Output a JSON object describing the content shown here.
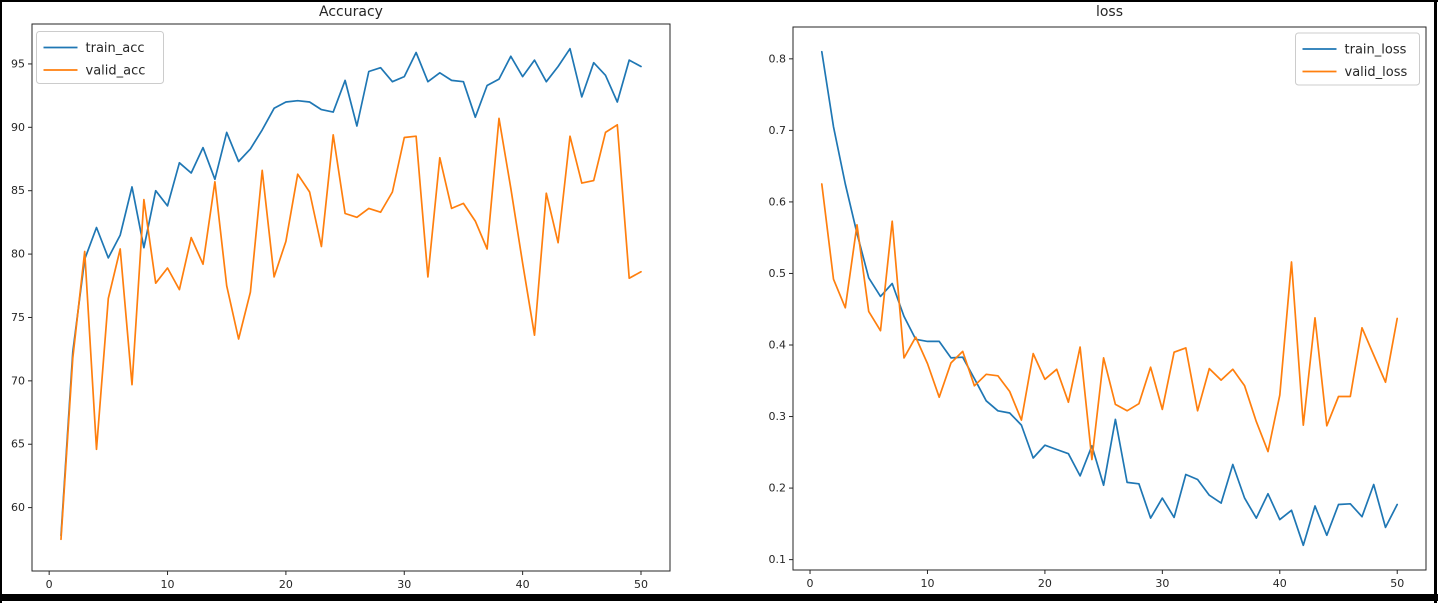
{
  "window": {
    "background": "#ffffff",
    "frame_color": "#000000"
  },
  "palette": {
    "train_color": "#1f77b4",
    "valid_color": "#ff7f0e",
    "axis_color": "#262626",
    "legend_border": "#cccccc",
    "text_color": "#262626"
  },
  "chart_data": [
    {
      "id": "accuracy",
      "type": "line",
      "title": "Accuracy",
      "xlabel": "",
      "ylabel": "",
      "xlim": [
        -1.45,
        52.45
      ],
      "ylim": [
        55.0,
        98.15
      ],
      "grid": false,
      "xticks": {
        "values": [
          0,
          10,
          20,
          30,
          40,
          50
        ],
        "labels": [
          "0",
          "10",
          "20",
          "30",
          "40",
          "50"
        ]
      },
      "yticks": {
        "values": [
          60,
          65,
          70,
          75,
          80,
          85,
          90,
          95
        ],
        "labels": [
          "60",
          "65",
          "70",
          "75",
          "80",
          "85",
          "90",
          "95"
        ]
      },
      "legend": {
        "position": "upper-left",
        "labels": [
          "train_acc",
          "valid_acc"
        ]
      },
      "x_start": 1,
      "series": [
        {
          "name": "train_acc",
          "color": "#1f77b4",
          "values": [
            57.8,
            72.3,
            79.6,
            82.1,
            79.7,
            81.5,
            85.3,
            80.5,
            85.0,
            83.8,
            87.2,
            86.4,
            88.4,
            85.9,
            89.6,
            87.3,
            88.3,
            89.8,
            91.5,
            92.0,
            92.1,
            92.0,
            91.4,
            91.2,
            93.7,
            90.1,
            94.4,
            94.7,
            93.6,
            94.0,
            95.9,
            93.6,
            94.3,
            93.7,
            93.6,
            90.8,
            93.3,
            93.8,
            95.6,
            94.0,
            95.3,
            93.6,
            94.8,
            96.2,
            92.4,
            95.1,
            94.1,
            92.0,
            95.3,
            94.8
          ]
        },
        {
          "name": "valid_acc",
          "color": "#ff7f0e",
          "values": [
            57.5,
            71.8,
            80.2,
            64.6,
            76.5,
            80.4,
            69.7,
            84.3,
            77.7,
            78.9,
            77.2,
            81.3,
            79.2,
            85.7,
            77.5,
            73.3,
            77.0,
            86.6,
            78.2,
            81.0,
            86.3,
            84.9,
            80.6,
            89.4,
            83.2,
            82.9,
            83.6,
            83.3,
            84.9,
            89.2,
            89.3,
            78.2,
            87.6,
            83.6,
            84.0,
            82.6,
            80.4,
            90.7,
            85.2,
            79.3,
            73.6,
            84.8,
            80.9,
            89.3,
            85.6,
            85.8,
            89.6,
            90.2,
            78.1,
            78.6
          ]
        }
      ]
    },
    {
      "id": "loss",
      "type": "line",
      "title": "loss",
      "xlabel": "",
      "ylabel": "",
      "xlim": [
        -1.45,
        52.45
      ],
      "ylim": [
        0.0855,
        0.8445
      ],
      "grid": false,
      "xticks": {
        "values": [
          0,
          10,
          20,
          30,
          40,
          50
        ],
        "labels": [
          "0",
          "10",
          "20",
          "30",
          "40",
          "50"
        ]
      },
      "yticks": {
        "values": [
          0.1,
          0.2,
          0.3,
          0.4,
          0.5,
          0.6,
          0.7,
          0.8
        ],
        "labels": [
          "0.1",
          "0.2",
          "0.3",
          "0.4",
          "0.5",
          "0.6",
          "0.7",
          "0.8"
        ]
      },
      "legend": {
        "position": "upper-right",
        "labels": [
          "train_loss",
          "valid_loss"
        ]
      },
      "x_start": 1,
      "series": [
        {
          "name": "train_loss",
          "color": "#1f77b4",
          "values": [
            0.81,
            0.705,
            0.625,
            0.556,
            0.494,
            0.468,
            0.486,
            0.44,
            0.408,
            0.405,
            0.405,
            0.382,
            0.383,
            0.353,
            0.322,
            0.308,
            0.305,
            0.288,
            0.242,
            0.26,
            0.254,
            0.248,
            0.217,
            0.259,
            0.204,
            0.296,
            0.208,
            0.206,
            0.158,
            0.186,
            0.159,
            0.219,
            0.212,
            0.19,
            0.179,
            0.233,
            0.186,
            0.158,
            0.192,
            0.156,
            0.169,
            0.12,
            0.175,
            0.134,
            0.177,
            0.178,
            0.16,
            0.205,
            0.145,
            0.177
          ]
        },
        {
          "name": "valid_loss",
          "color": "#ff7f0e",
          "values": [
            0.625,
            0.492,
            0.452,
            0.568,
            0.447,
            0.42,
            0.573,
            0.382,
            0.411,
            0.374,
            0.327,
            0.375,
            0.391,
            0.343,
            0.359,
            0.357,
            0.335,
            0.295,
            0.388,
            0.352,
            0.366,
            0.32,
            0.397,
            0.24,
            0.382,
            0.317,
            0.308,
            0.318,
            0.369,
            0.31,
            0.39,
            0.396,
            0.308,
            0.367,
            0.351,
            0.366,
            0.343,
            0.293,
            0.251,
            0.33,
            0.516,
            0.288,
            0.438,
            0.287,
            0.328,
            0.328,
            0.424,
            0.386,
            0.348,
            0.437
          ]
        }
      ]
    }
  ]
}
